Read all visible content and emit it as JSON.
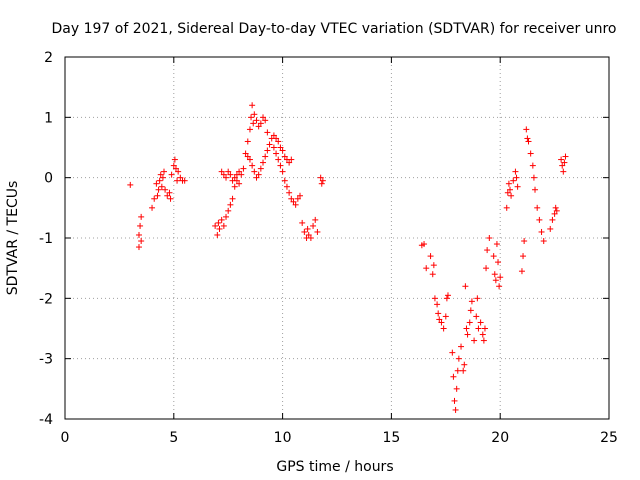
{
  "chart_data": {
    "type": "scatter",
    "title": "Day 197 of 2021, Sidereal Day-to-day VTEC variation (SDTVAR) for receiver unro",
    "xlabel": "GPS time / hours",
    "ylabel": "SDTVAR / TECUs",
    "xlim": [
      0,
      25
    ],
    "ylim": [
      -4,
      2
    ],
    "xticks": [
      "0",
      "5",
      "10",
      "15",
      "20",
      "25"
    ],
    "yticks": [
      "-4",
      "-3",
      "-2",
      "-1",
      "0",
      "1",
      "2"
    ],
    "grid": true,
    "marker": "plus",
    "color": "#ff0000",
    "series": [
      {
        "name": "SDTVAR",
        "x": [
          3.0,
          3.4,
          3.4,
          3.45,
          3.5,
          3.5,
          4.0,
          4.1,
          4.2,
          4.25,
          4.3,
          4.35,
          4.4,
          4.45,
          4.5,
          4.55,
          4.6,
          4.7,
          4.8,
          4.85,
          4.9,
          5.0,
          5.05,
          5.1,
          5.15,
          5.2,
          5.3,
          5.4,
          5.5,
          6.9,
          7.0,
          7.05,
          7.1,
          7.2,
          7.3,
          7.4,
          7.5,
          7.6,
          7.7,
          7.8,
          7.9,
          8.0,
          7.2,
          7.3,
          7.4,
          7.5,
          7.6,
          7.7,
          7.8,
          7.9,
          8.0,
          8.1,
          8.2,
          8.3,
          8.4,
          8.5,
          8.55,
          8.6,
          8.65,
          8.7,
          8.8,
          8.9,
          9.0,
          9.1,
          9.2,
          9.3,
          8.4,
          8.5,
          8.6,
          8.7,
          8.8,
          8.9,
          9.0,
          9.1,
          9.2,
          9.3,
          9.4,
          9.5,
          9.6,
          9.7,
          9.8,
          9.9,
          10.0,
          10.1,
          10.2,
          10.3,
          10.4,
          9.6,
          9.7,
          9.8,
          9.9,
          10.0,
          10.1,
          10.2,
          10.3,
          10.4,
          10.5,
          10.6,
          10.7,
          10.8,
          10.9,
          11.0,
          11.1,
          11.15,
          11.2,
          11.3,
          11.4,
          11.5,
          11.6,
          11.75,
          11.8,
          11.85,
          16.4,
          16.5,
          16.6,
          16.8,
          16.9,
          16.95,
          17.0,
          17.1,
          17.15,
          17.2,
          17.3,
          17.4,
          17.5,
          17.55,
          17.6,
          17.8,
          17.85,
          17.9,
          17.95,
          18.0,
          18.05,
          18.1,
          18.2,
          18.3,
          18.35,
          18.4,
          18.45,
          18.5,
          18.6,
          18.65,
          18.7,
          18.8,
          18.9,
          18.95,
          19.0,
          19.1,
          19.2,
          19.25,
          19.3,
          19.35,
          19.4,
          19.5,
          19.7,
          19.75,
          19.8,
          19.85,
          19.9,
          19.95,
          20.0,
          20.3,
          20.35,
          20.4,
          20.45,
          20.5,
          20.6,
          20.7,
          20.75,
          20.8,
          21.0,
          21.05,
          21.1,
          21.2,
          21.25,
          21.3,
          21.4,
          21.5,
          21.55,
          21.6,
          21.7,
          21.8,
          21.9,
          22.0,
          22.3,
          22.4,
          22.5,
          22.55,
          22.6,
          22.8,
          22.85,
          22.9,
          22.95,
          23.0
        ],
        "y": [
          -0.12,
          -1.15,
          -0.95,
          -0.8,
          -0.65,
          -1.05,
          -0.5,
          -0.35,
          -0.1,
          -0.3,
          -0.2,
          -0.05,
          0.05,
          -0.15,
          0.0,
          0.1,
          -0.2,
          -0.3,
          -0.25,
          -0.35,
          0.05,
          0.2,
          0.3,
          0.15,
          -0.05,
          0.1,
          0.0,
          -0.05,
          -0.05,
          -0.8,
          -0.95,
          -0.75,
          -0.85,
          -0.7,
          -0.8,
          -0.65,
          -0.55,
          -0.45,
          -0.35,
          -0.15,
          0.05,
          0.1,
          0.1,
          0.05,
          0.0,
          0.1,
          0.05,
          -0.05,
          0.0,
          -0.05,
          -0.1,
          0.05,
          0.15,
          0.4,
          0.6,
          0.8,
          1.0,
          1.2,
          0.9,
          1.05,
          0.95,
          0.85,
          0.9,
          1.0,
          0.95,
          0.75,
          0.35,
          0.3,
          0.2,
          0.1,
          0.0,
          0.05,
          0.15,
          0.25,
          0.35,
          0.45,
          0.55,
          0.65,
          0.7,
          0.65,
          0.6,
          0.5,
          0.45,
          0.35,
          0.3,
          0.25,
          0.3,
          0.5,
          0.4,
          0.3,
          0.2,
          0.1,
          -0.05,
          -0.15,
          -0.25,
          -0.35,
          -0.4,
          -0.45,
          -0.35,
          -0.3,
          -0.75,
          -0.9,
          -1.0,
          -0.85,
          -0.95,
          -1.0,
          -0.8,
          -0.7,
          -0.9,
          0.0,
          -0.1,
          -0.05,
          -1.12,
          -1.1,
          -1.5,
          -1.3,
          -1.6,
          -1.45,
          -2.0,
          -2.1,
          -2.25,
          -2.35,
          -2.4,
          -2.5,
          -2.3,
          -2.0,
          -1.95,
          -2.9,
          -3.3,
          -3.7,
          -3.85,
          -3.5,
          -3.2,
          -3.0,
          -2.8,
          -3.2,
          -3.1,
          -1.8,
          -2.5,
          -2.6,
          -2.4,
          -2.2,
          -2.05,
          -2.7,
          -2.3,
          -2.0,
          -2.5,
          -2.4,
          -2.6,
          -2.7,
          -2.5,
          -1.5,
          -1.2,
          -1.0,
          -1.3,
          -1.6,
          -1.7,
          -1.1,
          -1.4,
          -1.8,
          -1.65,
          -0.5,
          -0.25,
          -0.1,
          -0.2,
          -0.3,
          -0.05,
          0.1,
          0.0,
          -0.15,
          -1.55,
          -1.3,
          -1.05,
          0.8,
          0.65,
          0.6,
          0.4,
          0.2,
          0.0,
          -0.2,
          -0.5,
          -0.7,
          -0.9,
          -1.05,
          -0.85,
          -0.7,
          -0.6,
          -0.5,
          -0.55,
          0.3,
          0.2,
          0.1,
          0.25,
          0.35
        ]
      }
    ]
  }
}
